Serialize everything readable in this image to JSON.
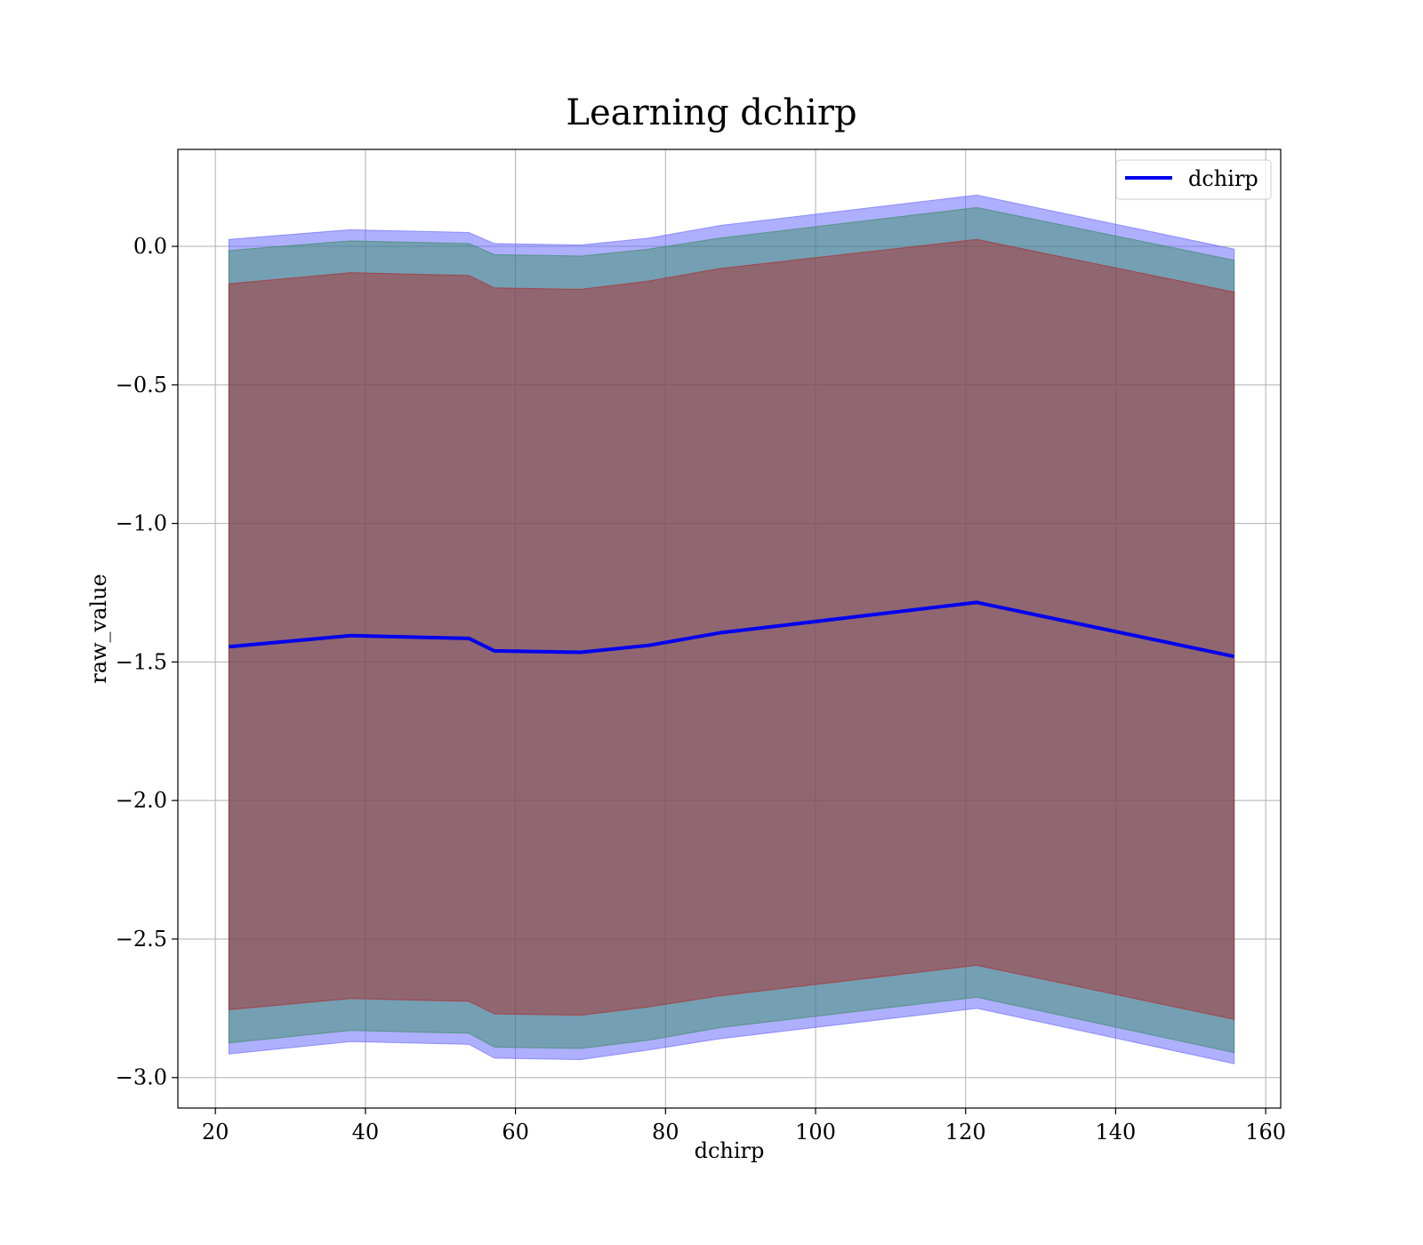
{
  "chart_data": {
    "type": "line",
    "title": "Learning dchirp",
    "xlabel": "dchirp",
    "ylabel": "raw_value",
    "xlim": [
      15,
      162
    ],
    "ylim": [
      -3.11,
      0.35
    ],
    "grid": true,
    "legend_position": "top-right",
    "x_ticks": [
      20,
      40,
      60,
      80,
      100,
      120,
      140,
      160
    ],
    "x_tick_labels": [
      "20",
      "40",
      "60",
      "80",
      "100",
      "120",
      "140",
      "160"
    ],
    "y_ticks": [
      0.0,
      -0.5,
      -1.0,
      -1.5,
      -2.0,
      -2.5,
      -3.0
    ],
    "y_tick_labels": [
      "0.0",
      "−0.5",
      "−1.0",
      "−1.5",
      "−2.0",
      "−2.5",
      "−3.0"
    ],
    "x": [
      21.8,
      38.0,
      53.8,
      57.2,
      68.7,
      77.8,
      87.2,
      121.5,
      155.8
    ],
    "series": [
      {
        "name": "dchirp",
        "color": "#0000ee",
        "values": [
          -1.445,
          -1.405,
          -1.415,
          -1.46,
          -1.465,
          -1.44,
          -1.395,
          -1.285,
          -1.48
        ]
      }
    ],
    "bands": [
      {
        "color": "#5f5fff",
        "opacity": 0.5,
        "upper": [
          0.025,
          0.06,
          0.05,
          0.01,
          0.005,
          0.03,
          0.075,
          0.185,
          -0.01
        ],
        "lower": [
          -2.915,
          -2.87,
          -2.88,
          -2.93,
          -2.935,
          -2.9,
          -2.86,
          -2.75,
          -2.95
        ]
      },
      {
        "color": "#2e8b57",
        "opacity": 0.45,
        "upper": [
          -0.015,
          0.02,
          0.01,
          -0.03,
          -0.035,
          -0.01,
          0.03,
          0.14,
          -0.05
        ],
        "lower": [
          -2.875,
          -2.83,
          -2.84,
          -2.89,
          -2.895,
          -2.865,
          -2.82,
          -2.71,
          -2.91
        ]
      },
      {
        "color": "#b22222",
        "opacity": 0.45,
        "upper": [
          -0.135,
          -0.095,
          -0.105,
          -0.15,
          -0.155,
          -0.125,
          -0.08,
          0.025,
          -0.165
        ],
        "lower": [
          -2.755,
          -2.715,
          -2.725,
          -2.77,
          -2.775,
          -2.745,
          -2.705,
          -2.595,
          -2.79
        ]
      }
    ]
  }
}
